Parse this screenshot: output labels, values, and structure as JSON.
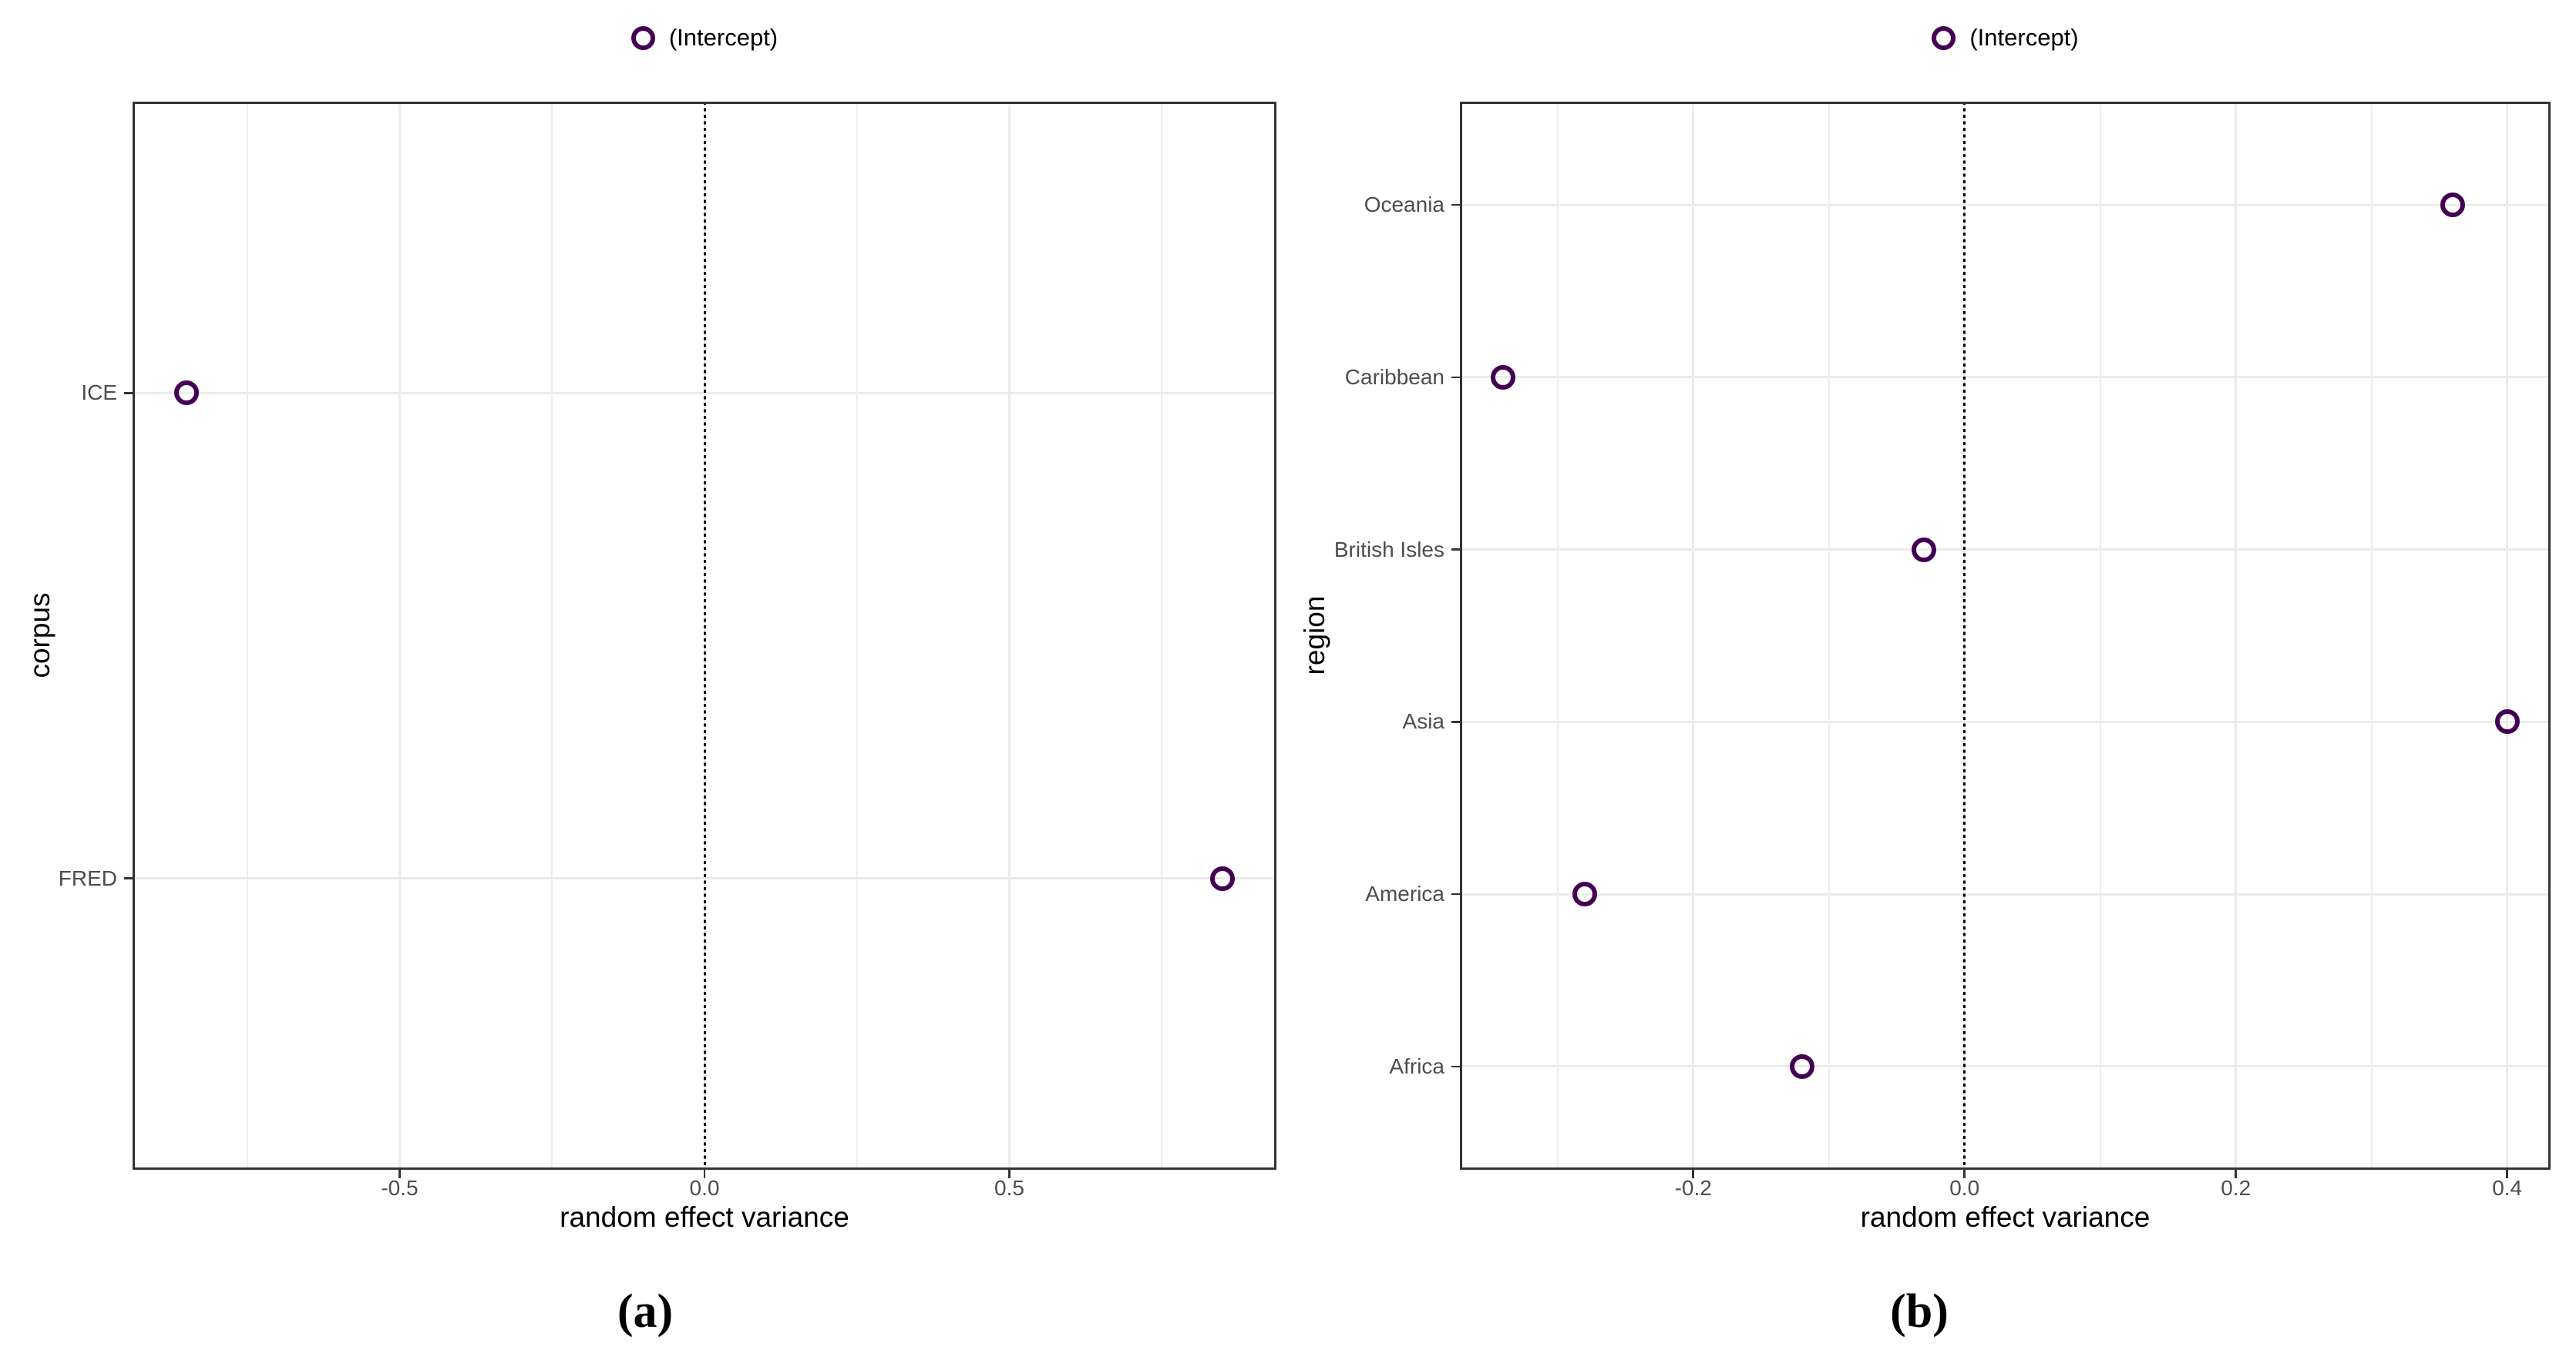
{
  "figure": {
    "background": "#FFFFFF",
    "legend_label": "(Intercept)",
    "marker_icon": "open-circle",
    "colors": {
      "point": "#440154",
      "grid_major": "#EBEBEB",
      "grid_minor": "#EDEDED",
      "panel_border": "#333333",
      "tick_mark": "#333333",
      "tick_label": "#4D4D4D",
      "axis_title": "#000000",
      "zero_line": "#000000"
    }
  },
  "chart_data": [
    {
      "id": "a",
      "type": "scatter",
      "caption": "(a)",
      "legend": "(Intercept)",
      "legend_position": "top-center",
      "marker": "open-circle",
      "title": "",
      "xlabel": "random effect variance",
      "ylabel": "corpus",
      "category_axis": "y (listed top to bottom)",
      "categories": [
        "ICE",
        "FRED"
      ],
      "values": [
        -0.85,
        0.85
      ],
      "xticks": [
        -0.5,
        0.0,
        0.5
      ],
      "xtick_labels": [
        "-0.5",
        "0.0",
        "0.5"
      ],
      "xminor": [
        -0.75,
        -0.25,
        0.25,
        0.75
      ],
      "xlim": [
        -0.938,
        0.938
      ],
      "zero_line": 0.0,
      "grid": true,
      "panel_background": "white"
    },
    {
      "id": "b",
      "type": "scatter",
      "caption": "(b)",
      "legend": "(Intercept)",
      "legend_position": "top-center",
      "marker": "open-circle",
      "title": "",
      "xlabel": "random effect variance",
      "ylabel": "region",
      "category_axis": "y (listed top to bottom)",
      "categories": [
        "Oceania",
        "Caribbean",
        "British Isles",
        "Asia",
        "America",
        "Africa"
      ],
      "values": [
        0.36,
        -0.34,
        -0.03,
        0.4,
        -0.28,
        -0.12
      ],
      "xticks": [
        -0.2,
        0.0,
        0.2,
        0.4
      ],
      "xtick_labels": [
        "-0.2",
        "0.0",
        "0.2",
        "0.4"
      ],
      "xminor": [
        -0.3,
        -0.1,
        0.1,
        0.3
      ],
      "xlim": [
        -0.372,
        0.432
      ],
      "zero_line": 0.0,
      "grid": true,
      "panel_background": "white"
    }
  ]
}
